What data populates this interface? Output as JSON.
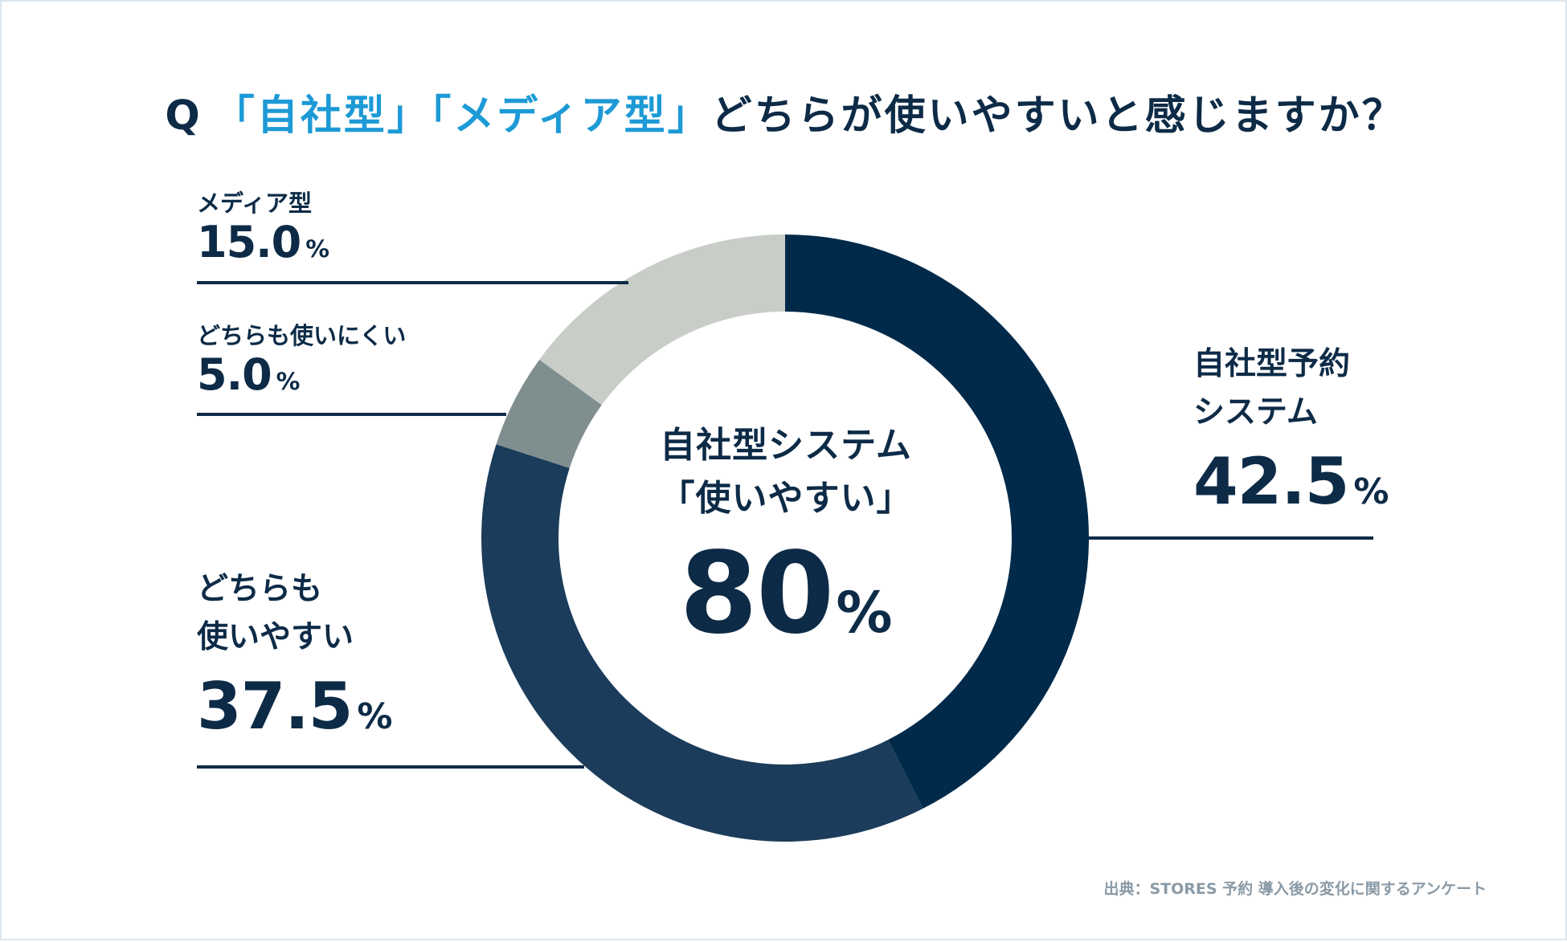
{
  "title": {
    "q": "Q",
    "highlight": "「自社型」「メディア型」",
    "rest": "どちらが使いやすいと感じますか？"
  },
  "chart_data": {
    "type": "pie",
    "donut": true,
    "start_angle_deg": 0,
    "direction": "clockwise",
    "series": [
      {
        "label": "自社型予約\nシステム",
        "value": 42.5,
        "display": "42.5",
        "color": "#012a4a",
        "label_side": "right"
      },
      {
        "label": "どちらも\n使いやすい",
        "value": 37.5,
        "display": "37.5",
        "color": "#1b3c5a",
        "label_side": "left"
      },
      {
        "label": "どちらも使いにくい",
        "value": 5.0,
        "display": "5.0",
        "color": "#7f8f8f",
        "label_side": "left"
      },
      {
        "label": "メディア型",
        "value": 15.0,
        "display": "15.0",
        "color": "#c8cdc8",
        "label_side": "left"
      }
    ],
    "unit": "%",
    "center": {
      "line1": "自社型システム",
      "line2": "「使いやすい」",
      "value": "80",
      "unit": "%"
    },
    "leader_color": "#0d2b47"
  },
  "source": "出典：STORES 予約 導入後の変化に関するアンケート"
}
